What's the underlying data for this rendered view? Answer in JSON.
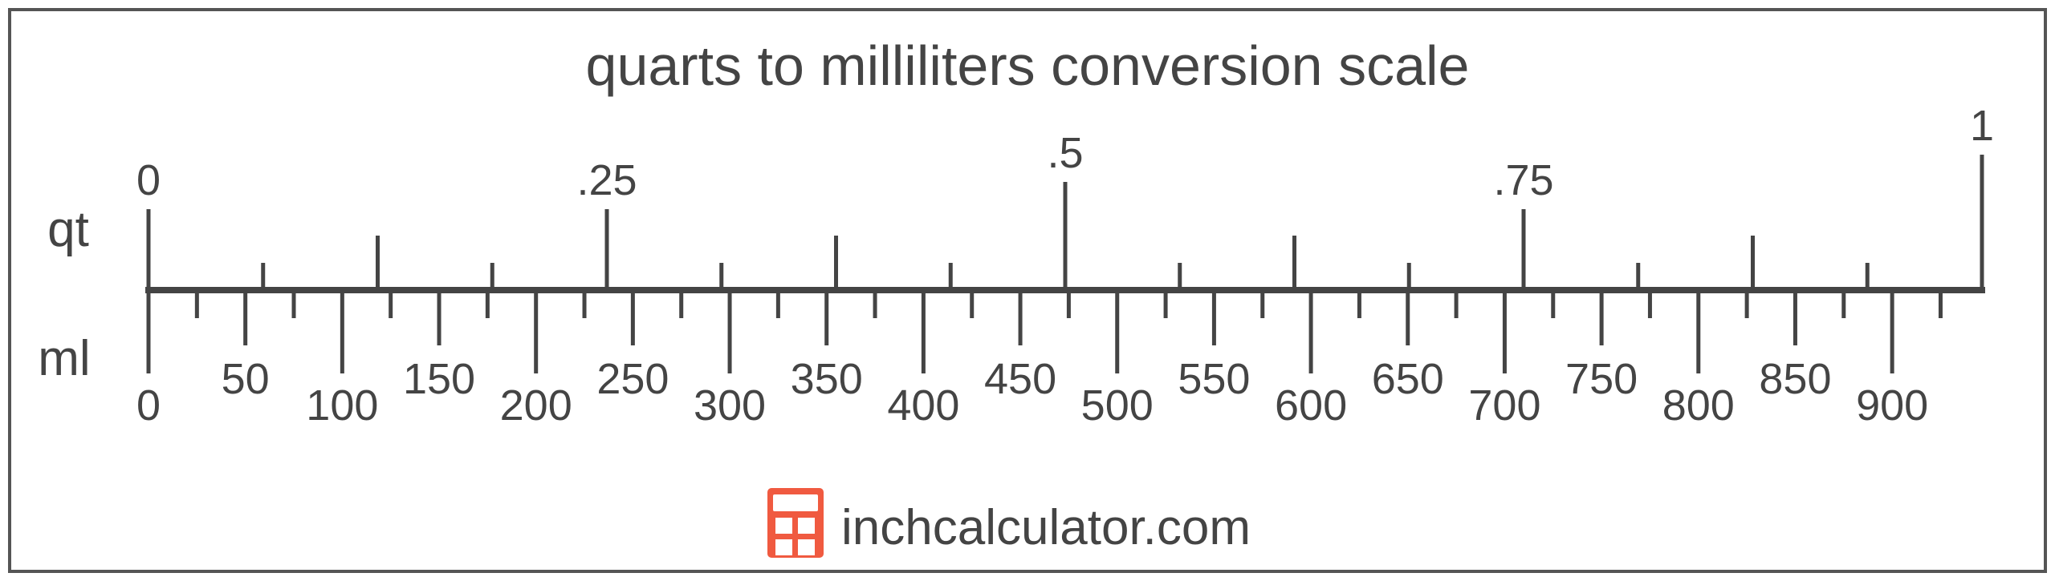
{
  "title": "quarts to milliliters conversion scale",
  "colors": {
    "ink": "#444444",
    "border": "#555555",
    "logo": "#f05a40"
  },
  "chart_data": {
    "type": "scale",
    "title": "quarts to milliliters conversion scale",
    "top_unit": "qt",
    "bottom_unit": "ml",
    "ml_per_qt": 946.353,
    "qt_range": [
      0,
      1
    ],
    "qt_minor_step": 0.0625,
    "qt_labels": [
      {
        "value": 0,
        "text": "0"
      },
      {
        "value": 0.25,
        "text": ".25"
      },
      {
        "value": 0.5,
        "text": ".5"
      },
      {
        "value": 0.75,
        "text": ".75"
      },
      {
        "value": 1,
        "text": "1"
      }
    ],
    "ml_minor_step": 25,
    "ml_labels": [
      "0",
      "50",
      "100",
      "150",
      "200",
      "250",
      "300",
      "350",
      "400",
      "450",
      "500",
      "550",
      "600",
      "650",
      "700",
      "750",
      "800",
      "850",
      "900"
    ]
  },
  "footer": {
    "logo_icon": "calculator-icon",
    "site": "inchcalculator.com"
  }
}
